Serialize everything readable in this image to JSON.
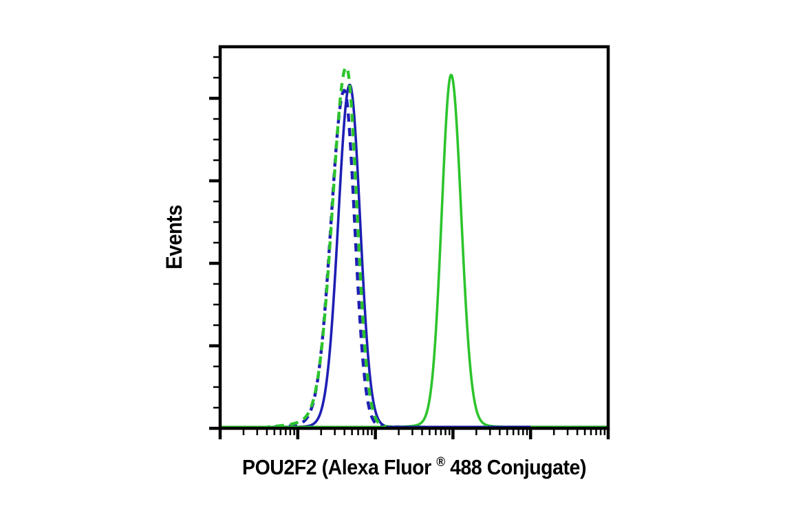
{
  "figure": {
    "background_color": "#ffffff",
    "title": "",
    "x_axis_label_parts": {
      "pre": "POU2F2 (Alexa Fluor",
      "registered": "®",
      "post": " 488 Conjugate)"
    },
    "y_axis_label": "Events"
  },
  "chart_data": {
    "type": "line",
    "subtype": "flow-cytometry-histogram-overlay",
    "title": "",
    "xlabel": "POU2F2 (Alexa Fluor® 488 Conjugate)",
    "ylabel": "Events",
    "grid": false,
    "legend": null,
    "axes": {
      "x": {
        "scale": "log10",
        "decades": 5,
        "range_log": [
          0,
          5
        ],
        "tick_labels": [],
        "major_ticks_log": [
          0,
          1,
          2,
          3,
          4,
          5
        ],
        "minor_ticks": "log-spaced (2-9 per decade)"
      },
      "y": {
        "scale": "linear",
        "range_rel": [
          0,
          1
        ],
        "tick_labels": [],
        "major_tick_count": 5,
        "minor_ticks_per_major": 3
      }
    },
    "colors": {
      "blue": "#1e1eb4",
      "green": "#2cc42c",
      "axis": "#000000"
    },
    "peaks_summary": [
      {
        "curve": "dashed-blue-histogram",
        "peak_log": 1.6,
        "peak_rel_height": 0.875
      },
      {
        "curve": "solid-blue-histogram",
        "peak_log": 1.67,
        "peak_rel_height": 0.893
      },
      {
        "curve": "dashed-green-histogram",
        "peak_log": 1.63,
        "peak_rel_height": 0.937
      },
      {
        "curve": "solid-green-histogram",
        "peak_log": 2.98,
        "peak_rel_height": 0.906
      }
    ],
    "series": [
      {
        "name": "dashed-blue-histogram",
        "color": "blue",
        "line_style": "dashed",
        "dash_phase": 0,
        "peak_log": 1.6,
        "peak_rel_height": 0.875,
        "sigma_left_log": 0.169,
        "sigma_right_log": 0.133,
        "foot": {
          "mu": 1.38,
          "sigma": 0.25,
          "amp": 0.015
        },
        "range_log": [
          0.7,
          2.32
        ]
      },
      {
        "name": "solid-blue-histogram",
        "color": "blue",
        "line_style": "solid",
        "dash_phase": 0,
        "peak_log": 1.67,
        "peak_rel_height": 0.893,
        "sigma_left_log": 0.147,
        "sigma_right_log": 0.133,
        "foot": {
          "mu": 1.55,
          "sigma": 0.22,
          "amp": 0.008
        },
        "range_log": [
          0.68,
          5.0
        ]
      },
      {
        "name": "dashed-green-histogram",
        "color": "green",
        "line_style": "dashed",
        "dash_phase": 10,
        "peak_log": 1.626,
        "peak_rel_height": 0.937,
        "sigma_left_log": 0.178,
        "sigma_right_log": 0.138,
        "foot": {
          "mu": 1.3,
          "sigma": 0.28,
          "amp": 0.018
        },
        "range_log": [
          0.62,
          2.32
        ]
      },
      {
        "name": "solid-green-histogram",
        "color": "green",
        "line_style": "solid",
        "dash_phase": 0,
        "peak_log": 2.976,
        "peak_rel_height": 0.906,
        "sigma_left_log": 0.12,
        "sigma_right_log": 0.129,
        "foot": {
          "mu": 2.976,
          "sigma": 0.24,
          "amp": 0.02
        },
        "range_log": [
          0.02,
          4.98
        ]
      }
    ],
    "baseline_overlay_segments": [
      {
        "color": "blue",
        "from_log": 2.14,
        "to_log": 2.65
      },
      {
        "color": "blue",
        "from_log": 3.44,
        "to_log": 4.0
      }
    ]
  }
}
